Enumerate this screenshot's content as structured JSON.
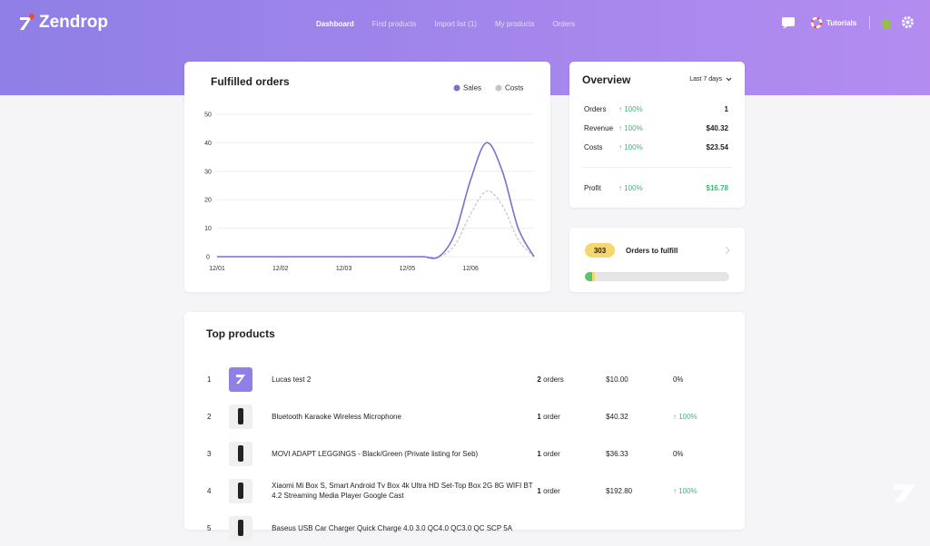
{
  "header": {
    "brand": "Zendrop",
    "nav": [
      "Dashboard",
      "Find products",
      "Import list (1)",
      "My products",
      "Orders"
    ],
    "tutorials": "Tutorials"
  },
  "chart_data": {
    "type": "line",
    "title": "Fulfilled orders",
    "categories": [
      "12/01",
      null,
      null,
      null,
      "12/02",
      null,
      null,
      null,
      "12/03",
      null,
      null,
      null,
      "12/05",
      null,
      null,
      null,
      "12/06",
      null,
      null,
      null,
      null
    ],
    "series": [
      {
        "name": "Sales",
        "color": "#7b6fd0",
        "values": [
          0,
          0,
          0,
          0,
          0,
          0,
          0,
          0,
          0,
          0,
          0,
          0,
          0,
          0,
          0,
          8,
          27,
          40,
          30,
          10,
          0
        ]
      },
      {
        "name": "Costs",
        "color": "#c4c4c4",
        "values": [
          0,
          0,
          0,
          0,
          0,
          0,
          0,
          0,
          0,
          0,
          0,
          0,
          0,
          0,
          0,
          4,
          15,
          23,
          18,
          6,
          0
        ]
      }
    ],
    "ylim": [
      0,
      50
    ],
    "yticks": [
      0,
      10,
      20,
      30,
      40,
      50
    ],
    "grid": true,
    "legend": "top-right"
  },
  "overview": {
    "title": "Overview",
    "period": "Last 7 days",
    "rows": [
      {
        "label": "Orders",
        "change": "↑ 100%",
        "value": "1"
      },
      {
        "label": "Revenue",
        "change": "↑ 100%",
        "value": "$40.32"
      },
      {
        "label": "Costs",
        "change": "↑ 100%",
        "value": "$23.54"
      }
    ],
    "profit": {
      "label": "Profit",
      "change": "↑ 100%",
      "value": "$16.78"
    }
  },
  "fulfill": {
    "count": "303",
    "label": "Orders to fulfill"
  },
  "top_products": {
    "title": "Top products",
    "rows": [
      {
        "rank": "1",
        "name": "Lucas test 2",
        "orders": "2",
        "unit": "orders",
        "price": "$10.00",
        "change": "0%"
      },
      {
        "rank": "2",
        "name": "Bluetooth Karaoke Wireless Microphone",
        "orders": "1",
        "unit": "order",
        "price": "$40.32",
        "change": "↑ 100%"
      },
      {
        "rank": "3",
        "name": "MOVI ADAPT LEGGINGS - Black/Green (Private listing for Seb)",
        "orders": "1",
        "unit": "order",
        "price": "$36.33",
        "change": "0%"
      },
      {
        "rank": "4",
        "name": "Xiaomi Mi Box S, Smart Android Tv Box 4k Ultra HD Set-Top Box 2G 8G WIFI BT 4.2 Streaming Media Player Google Cast",
        "orders": "1",
        "unit": "order",
        "price": "$192.80",
        "change": "↑ 100%"
      },
      {
        "rank": "5",
        "name": "Baseus USB Car Charger Quick Charge 4.0 3.0 QC4.0 QC3.0 QC SCP 5A",
        "orders": "",
        "unit": "",
        "price": "",
        "change": ""
      }
    ]
  }
}
